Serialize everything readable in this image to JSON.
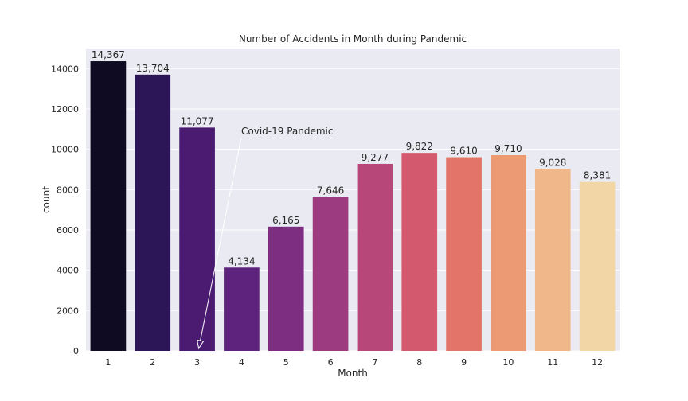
{
  "chart_data": {
    "type": "bar",
    "title": "Number of Accidents in Month during Pandemic",
    "xlabel": "Month",
    "ylabel": "count",
    "categories": [
      "1",
      "2",
      "3",
      "4",
      "5",
      "6",
      "7",
      "8",
      "9",
      "10",
      "11",
      "12"
    ],
    "values": [
      14367,
      13704,
      11077,
      4134,
      6165,
      7646,
      9277,
      9822,
      9610,
      9710,
      9028,
      8381
    ],
    "value_labels": [
      "14,367",
      "13,704",
      "11,077",
      "4,134",
      "6,165",
      "7,646",
      "9,277",
      "9,822",
      "9,610",
      "9,710",
      "9,028",
      "8,381"
    ],
    "ylim": [
      0,
      15000
    ],
    "yticks": [
      0,
      2000,
      4000,
      6000,
      8000,
      10000,
      12000,
      14000
    ],
    "grid": "y",
    "bar_colors": [
      "#0e0b22",
      "#2d1657",
      "#4b1a71",
      "#5e237c",
      "#7d2e80",
      "#9c3b7f",
      "#b84779",
      "#d3596e",
      "#e3746a",
      "#ec9a73",
      "#f0b78a",
      "#f2d6a5"
    ],
    "background": "#eaeaf2",
    "annotation": {
      "text": "Covid-19 Pandemic",
      "arrow_from": {
        "x": "3",
        "value": 0
      }
    }
  }
}
